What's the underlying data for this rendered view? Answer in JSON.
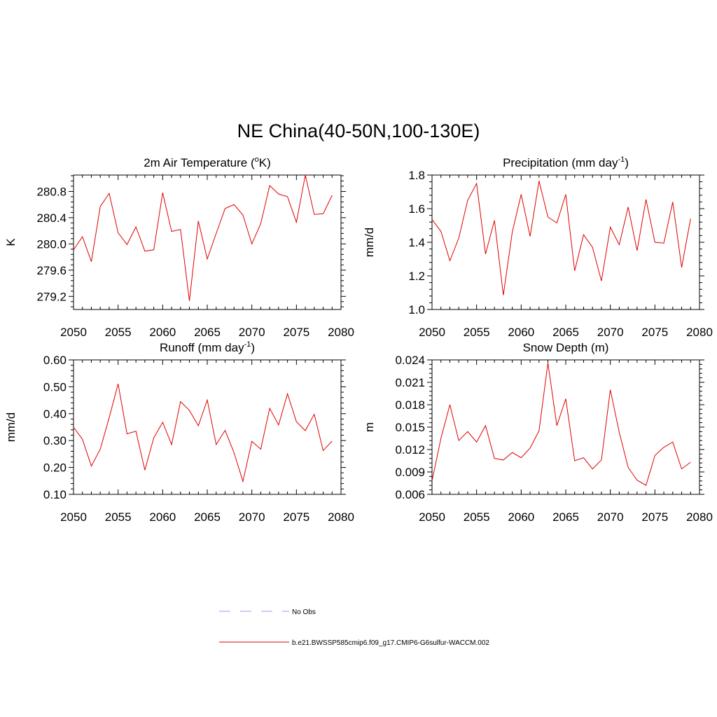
{
  "figure": {
    "title": "NE China(40-50N,100-130E)"
  },
  "chart_data": [
    {
      "type": "line",
      "title": "2m Air Temperature (",
      "title_sup": "o",
      "title_suffix": "K)",
      "ylabel": "K",
      "xlim": [
        2050,
        2080
      ],
      "ylim": [
        279.0,
        281.05
      ],
      "xticks": [
        2050,
        2055,
        2060,
        2065,
        2070,
        2075,
        2080
      ],
      "yticks": [
        279.2,
        279.6,
        280.0,
        280.4,
        280.8
      ],
      "ytick_labels": [
        "279.2",
        "279.6",
        "280.0",
        "280.4",
        "280.8"
      ],
      "series": [
        {
          "color": "#e00000",
          "x": [
            2050,
            2051,
            2052,
            2053,
            2054,
            2055,
            2056,
            2057,
            2058,
            2059,
            2060,
            2061,
            2062,
            2063,
            2064,
            2065,
            2066,
            2067,
            2068,
            2069,
            2070,
            2071,
            2072,
            2073,
            2074,
            2075,
            2076,
            2077,
            2078,
            2079
          ],
          "values": [
            279.91,
            280.11,
            279.73,
            280.57,
            280.77,
            280.17,
            279.99,
            280.26,
            279.89,
            279.91,
            280.78,
            280.19,
            280.22,
            279.13,
            280.35,
            279.77,
            280.16,
            280.54,
            280.6,
            280.44,
            280.0,
            280.31,
            280.89,
            280.76,
            280.72,
            280.33,
            281.05,
            280.45,
            280.46,
            280.74
          ]
        }
      ]
    },
    {
      "type": "line",
      "title": "Precipitation (mm day",
      "title_sup": "-1",
      "title_suffix": ")",
      "ylabel": "mm/d",
      "xlim": [
        2050,
        2080
      ],
      "ylim": [
        1.0,
        1.8
      ],
      "xticks": [
        2050,
        2055,
        2060,
        2065,
        2070,
        2075,
        2080
      ],
      "yticks": [
        1.0,
        1.2,
        1.4,
        1.6,
        1.8
      ],
      "ytick_labels": [
        "1.0",
        "1.2",
        "1.4",
        "1.6",
        "1.8"
      ],
      "series": [
        {
          "color": "#e00000",
          "x": [
            2050,
            2051,
            2052,
            2053,
            2054,
            2055,
            2056,
            2057,
            2058,
            2059,
            2060,
            2061,
            2062,
            2063,
            2064,
            2065,
            2066,
            2067,
            2068,
            2069,
            2070,
            2071,
            2072,
            2073,
            2074,
            2075,
            2076,
            2077,
            2078,
            2079
          ],
          "values": [
            1.535,
            1.465,
            1.29,
            1.425,
            1.65,
            1.75,
            1.33,
            1.53,
            1.085,
            1.46,
            1.685,
            1.435,
            1.765,
            1.55,
            1.515,
            1.685,
            1.23,
            1.445,
            1.37,
            1.17,
            1.49,
            1.385,
            1.61,
            1.35,
            1.655,
            1.4,
            1.395,
            1.64,
            1.25,
            1.54
          ]
        }
      ]
    },
    {
      "type": "line",
      "title": "Runoff (mm day",
      "title_sup": "-1",
      "title_suffix": ")",
      "ylabel": "mm/d",
      "xlim": [
        2050,
        2080
      ],
      "ylim": [
        0.1,
        0.6
      ],
      "xticks": [
        2050,
        2055,
        2060,
        2065,
        2070,
        2075,
        2080
      ],
      "yticks": [
        0.1,
        0.2,
        0.3,
        0.4,
        0.5,
        0.6
      ],
      "ytick_labels": [
        "0.10",
        "0.20",
        "0.30",
        "0.40",
        "0.50",
        "0.60"
      ],
      "series": [
        {
          "color": "#e00000",
          "x": [
            2050,
            2051,
            2052,
            2053,
            2054,
            2055,
            2056,
            2057,
            2058,
            2059,
            2060,
            2061,
            2062,
            2063,
            2064,
            2065,
            2066,
            2067,
            2068,
            2069,
            2070,
            2071,
            2072,
            2073,
            2074,
            2075,
            2076,
            2077,
            2078,
            2079
          ],
          "values": [
            0.35,
            0.305,
            0.205,
            0.268,
            0.385,
            0.511,
            0.325,
            0.335,
            0.19,
            0.31,
            0.368,
            0.285,
            0.445,
            0.412,
            0.355,
            0.451,
            0.285,
            0.338,
            0.255,
            0.148,
            0.297,
            0.268,
            0.42,
            0.358,
            0.474,
            0.37,
            0.337,
            0.398,
            0.263,
            0.298
          ]
        }
      ]
    },
    {
      "type": "line",
      "title": "Snow Depth (m)",
      "title_sup": "",
      "title_suffix": "",
      "ylabel": "m",
      "xlim": [
        2050,
        2080
      ],
      "ylim": [
        0.006,
        0.024
      ],
      "xticks": [
        2050,
        2055,
        2060,
        2065,
        2070,
        2075,
        2080
      ],
      "yticks": [
        0.006,
        0.009,
        0.012,
        0.015,
        0.018,
        0.021,
        0.024
      ],
      "ytick_labels": [
        "0.006",
        "0.009",
        "0.012",
        "0.015",
        "0.018",
        "0.021",
        "0.024"
      ],
      "series": [
        {
          "color": "#e00000",
          "x": [
            2050,
            2051,
            2052,
            2053,
            2054,
            2055,
            2056,
            2057,
            2058,
            2059,
            2060,
            2061,
            2062,
            2063,
            2064,
            2065,
            2066,
            2067,
            2068,
            2069,
            2070,
            2071,
            2072,
            2073,
            2074,
            2075,
            2076,
            2077,
            2078,
            2079
          ],
          "values": [
            0.0078,
            0.0135,
            0.018,
            0.0132,
            0.0144,
            0.013,
            0.0152,
            0.0108,
            0.0106,
            0.0116,
            0.0109,
            0.0122,
            0.0145,
            0.0236,
            0.0152,
            0.0188,
            0.0105,
            0.0109,
            0.0094,
            0.0106,
            0.02,
            0.0143,
            0.0096,
            0.0079,
            0.0072,
            0.0112,
            0.0123,
            0.013,
            0.0094,
            0.0103
          ]
        }
      ]
    }
  ],
  "legend": {
    "items": [
      {
        "label": "No Obs",
        "color": "#9a9aff",
        "dash": true
      },
      {
        "label": "b.e21.BWSSP585cmip6.f09_g17.CMIP6-G6sulfur-WACCM.002",
        "color": "#e00000",
        "dash": false
      }
    ]
  }
}
